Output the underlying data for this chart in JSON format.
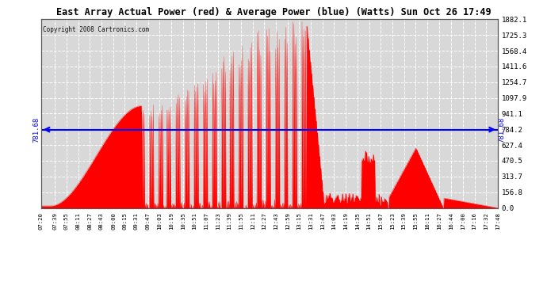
{
  "title": "East Array Actual Power (red) & Average Power (blue) (Watts) Sun Oct 26 17:49",
  "copyright": "Copyright 2008 Cartronics.com",
  "average_power": 781.68,
  "y_max": 1882.1,
  "y_min": 0.0,
  "y_ticks": [
    0.0,
    156.8,
    313.7,
    470.5,
    627.4,
    784.2,
    941.1,
    1097.9,
    1254.7,
    1411.6,
    1568.4,
    1725.3,
    1882.1
  ],
  "background_color": "#ffffff",
  "plot_bg_color": "#d8d8d8",
  "grid_color": "#ffffff",
  "fill_color": "#ff0000",
  "avg_line_color": "#0000ff",
  "title_color": "#000000",
  "x_labels": [
    "07:20",
    "07:39",
    "07:55",
    "08:11",
    "08:27",
    "08:43",
    "09:00",
    "09:15",
    "09:31",
    "09:47",
    "10:03",
    "10:19",
    "10:35",
    "10:51",
    "11:07",
    "11:23",
    "11:39",
    "11:55",
    "12:11",
    "12:27",
    "12:43",
    "12:59",
    "13:15",
    "13:31",
    "13:47",
    "14:03",
    "14:19",
    "14:35",
    "14:51",
    "15:07",
    "15:23",
    "15:39",
    "15:55",
    "16:11",
    "16:27",
    "16:44",
    "17:00",
    "17:16",
    "17:32",
    "17:48"
  ]
}
